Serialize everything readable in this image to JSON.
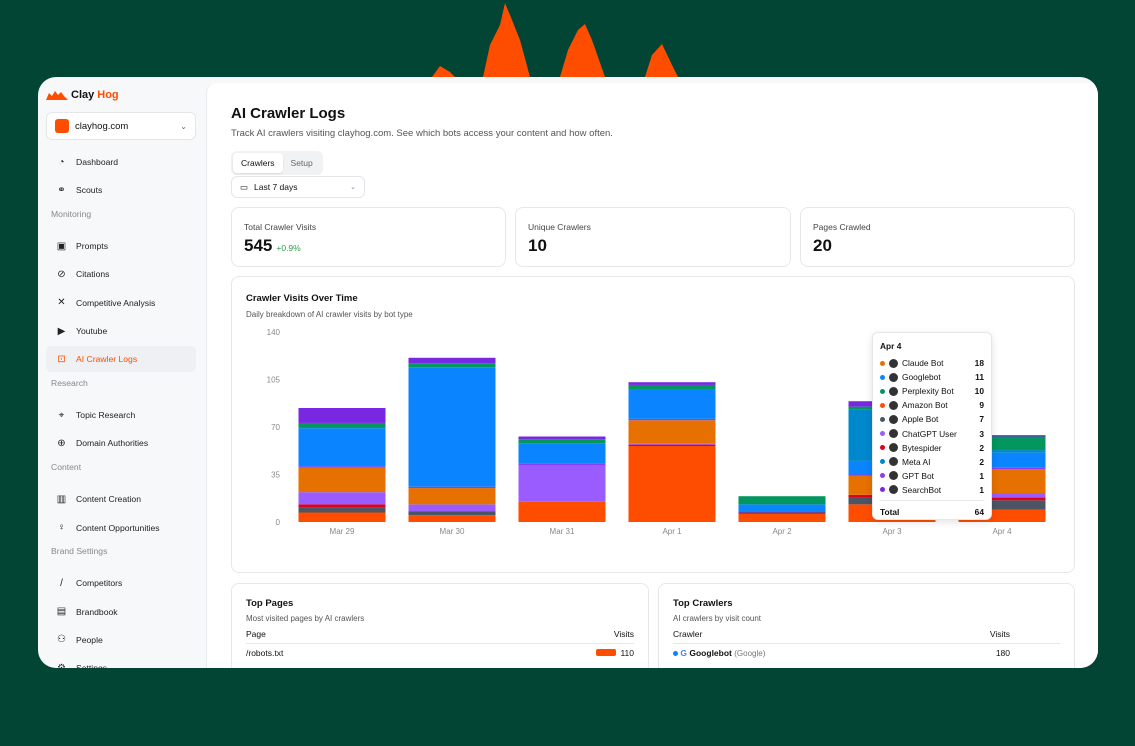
{
  "brand": {
    "name_a": "Clay",
    "name_b": "Hog",
    "site": "clayhog.com",
    "accent": "#ff4d00",
    "background": "#024535"
  },
  "sidebar": {
    "top": [
      {
        "label": "Dashboard",
        "icon": "gauge-icon"
      },
      {
        "label": "Scouts",
        "icon": "binoculars-icon"
      }
    ],
    "sections": [
      {
        "title": "Monitoring",
        "items": [
          {
            "label": "Prompts",
            "icon": "terminal-icon"
          },
          {
            "label": "Citations",
            "icon": "link-icon"
          },
          {
            "label": "Competitive Analysis",
            "icon": "swords-icon"
          },
          {
            "label": "Youtube",
            "icon": "youtube-icon"
          },
          {
            "label": "AI Crawler Logs",
            "icon": "bot-icon",
            "active": true
          }
        ]
      },
      {
        "title": "Research",
        "items": [
          {
            "label": "Topic Research",
            "icon": "telescope-icon"
          },
          {
            "label": "Domain Authorities",
            "icon": "globe-icon"
          }
        ]
      },
      {
        "title": "Content",
        "items": [
          {
            "label": "Content Creation",
            "icon": "book-icon"
          },
          {
            "label": "Content Opportunities",
            "icon": "lightbulb-icon"
          }
        ]
      },
      {
        "title": "Brand Settings",
        "items": [
          {
            "label": "Competitors",
            "icon": "sword-icon"
          },
          {
            "label": "Brandbook",
            "icon": "brandbook-icon"
          },
          {
            "label": "People",
            "icon": "users-icon"
          },
          {
            "label": "Settings",
            "icon": "gear-icon"
          }
        ]
      }
    ]
  },
  "header": {
    "title": "AI Crawler Logs",
    "subtitle": "Track AI crawlers visiting clayhog.com. See which bots access your content and how often.",
    "tabs": [
      "Crawlers",
      "Setup"
    ],
    "date_range": "Last 7 days"
  },
  "stats": [
    {
      "label": "Total Crawler Visits",
      "value": "545",
      "delta": "+0.9%"
    },
    {
      "label": "Unique Crawlers",
      "value": "10"
    },
    {
      "label": "Pages Crawled",
      "value": "20"
    }
  ],
  "chart_card": {
    "title": "Crawler Visits Over Time",
    "subtitle": "Daily breakdown of AI crawler visits by bot type"
  },
  "chart_data": {
    "type": "bar",
    "stacked": true,
    "categories": [
      "Mar 29",
      "Mar 30",
      "Mar 31",
      "Apr 1",
      "Apr 2",
      "Apr 3",
      "Apr 4"
    ],
    "ylim": [
      0,
      140
    ],
    "yticks": [
      0,
      35,
      70,
      105,
      140
    ],
    "legend": "bottom",
    "series": [
      {
        "name": "Amazon Bot",
        "color": "#ff4d00",
        "values": [
          7,
          5,
          15,
          56,
          6,
          13,
          9
        ]
      },
      {
        "name": "Apple Bot",
        "color": "#4b5563",
        "values": [
          4,
          3,
          0,
          0,
          0,
          5,
          7
        ]
      },
      {
        "name": "Bytespider",
        "color": "#e0001b",
        "values": [
          2,
          0,
          0,
          1,
          1,
          2,
          2
        ]
      },
      {
        "name": "ChatGPT User",
        "color": "#9b5cff",
        "values": [
          9,
          5,
          27,
          1,
          0,
          0,
          3
        ]
      },
      {
        "name": "Claude Bot",
        "color": "#e67000",
        "values": [
          18,
          12,
          0,
          17,
          0,
          14,
          18
        ]
      },
      {
        "name": "GPT Bot",
        "color": "#8b3cf7",
        "values": [
          1,
          1,
          1,
          1,
          0,
          1,
          1
        ]
      },
      {
        "name": "Googlebot",
        "color": "#0a84ff",
        "values": [
          28,
          88,
          15,
          22,
          6,
          10,
          11
        ]
      },
      {
        "name": "Meta AI",
        "color": "#0088cc",
        "values": [
          1,
          0,
          0,
          0,
          0,
          38,
          2
        ]
      },
      {
        "name": "Perplexity Bot",
        "color": "#03965e",
        "values": [
          3,
          3,
          3,
          3,
          6,
          2,
          10
        ]
      },
      {
        "name": "SearchBot",
        "color": "#7828e0",
        "values": [
          11,
          4,
          2,
          2,
          0,
          4,
          1
        ]
      }
    ]
  },
  "tooltip": {
    "date": "Apr 4",
    "rows": [
      [
        "Claude Bot",
        "18"
      ],
      [
        "Googlebot",
        "11"
      ],
      [
        "Perplexity Bot",
        "10"
      ],
      [
        "Amazon Bot",
        "9"
      ],
      [
        "Apple Bot",
        "7"
      ],
      [
        "ChatGPT User",
        "3"
      ],
      [
        "Bytespider",
        "2"
      ],
      [
        "Meta AI",
        "2"
      ],
      [
        "GPT Bot",
        "1"
      ],
      [
        "SearchBot",
        "1"
      ]
    ],
    "total_label": "Total",
    "total": "64"
  },
  "top_pages": {
    "title": "Top Pages",
    "subtitle": "Most visited pages by AI crawlers",
    "col_page": "Page",
    "col_visits": "Visits",
    "rows": [
      {
        "page": "/robots.txt",
        "visits": "110"
      }
    ]
  },
  "top_crawlers": {
    "title": "Top Crawlers",
    "subtitle": "AI crawlers by visit count",
    "col_crawler": "Crawler",
    "col_visits": "Visits",
    "rows": [
      {
        "name": "Googlebot",
        "org": "(Google)",
        "visits": "180"
      }
    ]
  }
}
